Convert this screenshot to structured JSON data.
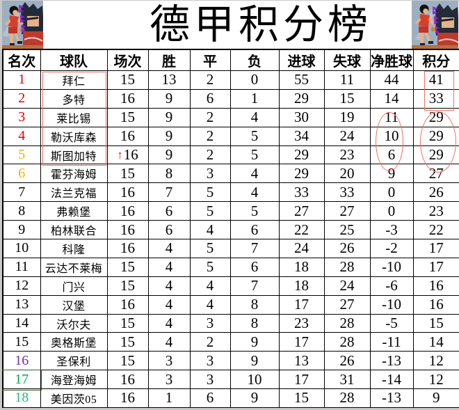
{
  "title": "德甲积分榜",
  "table": {
    "headers": [
      "名次",
      "球队",
      "场次",
      "胜",
      "平",
      "负",
      "进球",
      "失球",
      "净胜球",
      "积分"
    ],
    "rows": [
      {
        "rank": "1",
        "team": "拜仁",
        "played": "15",
        "win": "13",
        "draw": "2",
        "loss": "0",
        "gf": "55",
        "ga": "11",
        "gd": "44",
        "pts": "41",
        "rank_color": "#e60000"
      },
      {
        "rank": "2",
        "team": "多特",
        "played": "16",
        "win": "9",
        "draw": "6",
        "loss": "1",
        "gf": "29",
        "ga": "15",
        "gd": "14",
        "pts": "33",
        "rank_color": "#e60000"
      },
      {
        "rank": "3",
        "team": "莱比锡",
        "played": "15",
        "win": "9",
        "draw": "2",
        "loss": "4",
        "gf": "30",
        "ga": "19",
        "gd": "11",
        "pts": "29",
        "rank_color": "#e60000"
      },
      {
        "rank": "4",
        "team": "勒沃库森",
        "played": "16",
        "win": "9",
        "draw": "2",
        "loss": "5",
        "gf": "34",
        "ga": "24",
        "gd": "10",
        "pts": "29",
        "rank_color": "#e60000"
      },
      {
        "rank": "5",
        "team": "斯图加特",
        "played": "16",
        "win": "9",
        "draw": "2",
        "loss": "5",
        "gf": "29",
        "ga": "23",
        "gd": "6",
        "pts": "29",
        "rank_color": "#efb000",
        "arrow": "↑"
      },
      {
        "rank": "6",
        "team": "霍芬海姆",
        "played": "15",
        "win": "8",
        "draw": "3",
        "loss": "4",
        "gf": "29",
        "ga": "20",
        "gd": "9",
        "pts": "27",
        "rank_color": "#efb000"
      },
      {
        "rank": "7",
        "team": "法兰克福",
        "played": "16",
        "win": "7",
        "draw": "5",
        "loss": "4",
        "gf": "33",
        "ga": "33",
        "gd": "0",
        "pts": "26",
        "rank_color": "#000000"
      },
      {
        "rank": "8",
        "team": "弗赖堡",
        "played": "16",
        "win": "6",
        "draw": "5",
        "loss": "5",
        "gf": "27",
        "ga": "27",
        "gd": "0",
        "pts": "23",
        "rank_color": "#000000"
      },
      {
        "rank": "9",
        "team": "柏林联合",
        "played": "16",
        "win": "6",
        "draw": "4",
        "loss": "6",
        "gf": "22",
        "ga": "25",
        "gd": "-3",
        "pts": "22",
        "rank_color": "#000000"
      },
      {
        "rank": "10",
        "team": "科隆",
        "played": "16",
        "win": "4",
        "draw": "5",
        "loss": "7",
        "gf": "24",
        "ga": "26",
        "gd": "-2",
        "pts": "17",
        "rank_color": "#000000"
      },
      {
        "rank": "11",
        "team": "云达不莱梅",
        "played": "15",
        "win": "4",
        "draw": "5",
        "loss": "6",
        "gf": "18",
        "ga": "28",
        "gd": "-10",
        "pts": "17",
        "rank_color": "#000000"
      },
      {
        "rank": "12",
        "team": "门兴",
        "played": "15",
        "win": "4",
        "draw": "4",
        "loss": "7",
        "gf": "18",
        "ga": "24",
        "gd": "-6",
        "pts": "16",
        "rank_color": "#000000"
      },
      {
        "rank": "13",
        "team": "汉堡",
        "played": "16",
        "win": "4",
        "draw": "4",
        "loss": "8",
        "gf": "17",
        "ga": "27",
        "gd": "-10",
        "pts": "16",
        "rank_color": "#000000"
      },
      {
        "rank": "14",
        "team": "沃尔夫",
        "played": "15",
        "win": "4",
        "draw": "3",
        "loss": "8",
        "gf": "23",
        "ga": "28",
        "gd": "-5",
        "pts": "15",
        "rank_color": "#000000"
      },
      {
        "rank": "15",
        "team": "奥格斯堡",
        "played": "15",
        "win": "4",
        "draw": "2",
        "loss": "9",
        "gf": "17",
        "ga": "28",
        "gd": "-11",
        "pts": "14",
        "rank_color": "#000000"
      },
      {
        "rank": "16",
        "team": "圣保利",
        "played": "15",
        "win": "3",
        "draw": "3",
        "loss": "9",
        "gf": "13",
        "ga": "26",
        "gd": "-13",
        "pts": "12",
        "rank_color": "#7030a0"
      },
      {
        "rank": "17",
        "team": "海登海姆",
        "played": "16",
        "win": "3",
        "draw": "3",
        "loss": "10",
        "gf": "17",
        "ga": "31",
        "gd": "-14",
        "pts": "12",
        "rank_color": "#00a651"
      },
      {
        "rank": "18",
        "team": "美因茨05",
        "played": "16",
        "win": "1",
        "draw": "6",
        "loss": "9",
        "gf": "15",
        "ga": "28",
        "gd": "-13",
        "pts": "9",
        "rank_color": "#2cb878"
      }
    ]
  },
  "icons": {
    "promotion_arrow": "↑"
  },
  "colors": {
    "annotation_red": "#ef6f63",
    "arrow_red": "#e01010",
    "selected_cell_green": "#2f5d3a",
    "rank_top4_red": "#e60000",
    "rank_5_6_gold": "#efb000",
    "rank_16_purple": "#7030a0",
    "rank_17_green": "#00a651",
    "rank_18_green": "#2cb878"
  }
}
